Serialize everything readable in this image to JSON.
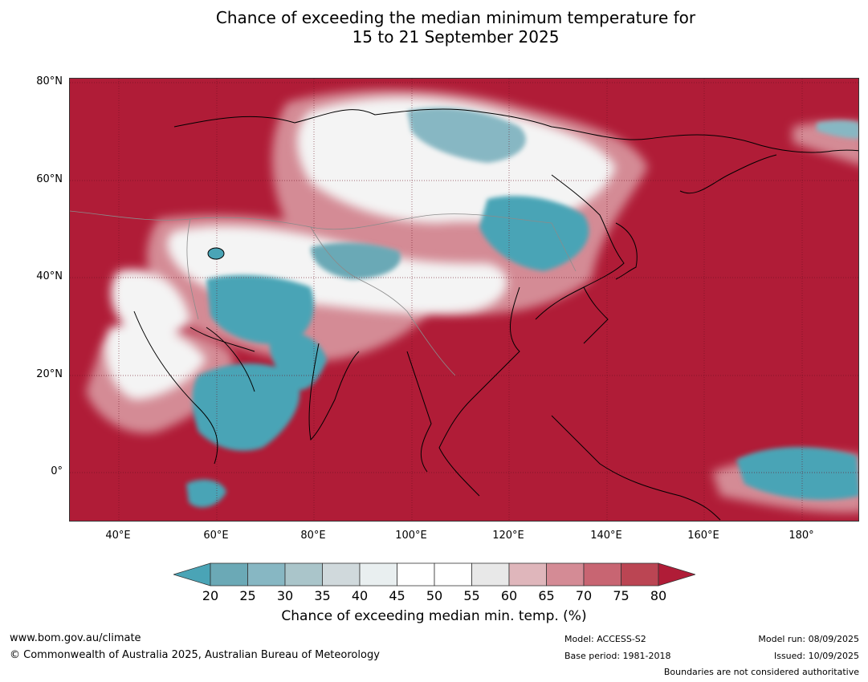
{
  "title_line1": "Chance of exceeding the median minimum temperature for",
  "title_line2": "15 to 21 September 2025",
  "lat_labels": [
    "80°N",
    "60°N",
    "40°N",
    "20°N",
    "0°"
  ],
  "lon_labels": [
    "40°E",
    "60°E",
    "80°E",
    "100°E",
    "120°E",
    "140°E",
    "160°E",
    "180°"
  ],
  "colorbar": {
    "ticks": [
      "20",
      "25",
      "30",
      "35",
      "40",
      "45",
      "50",
      "55",
      "60",
      "65",
      "70",
      "75",
      "80"
    ],
    "colors": [
      "#6ba9b6",
      "#87b7c3",
      "#aac5ca",
      "#d0d9dc",
      "#e9eff0",
      "#ffffff",
      "#ffffff",
      "#e8e8e8",
      "#dfb6bb",
      "#d48b95",
      "#c86572",
      "#bb4553"
    ],
    "low_extend_color": "#4aa4b6",
    "high_extend_color": "#b01c37",
    "label": "Chance of exceeding median min. temp. (%)"
  },
  "footer": {
    "website": "www.bom.gov.au/climate",
    "copyright": "© Commonwealth of Australia 2025, Australian Bureau of Meteorology",
    "model": "Model: ACCESS-S2",
    "base_period": "Base period: 1981-2018",
    "model_run": "Model run: 08/09/2025",
    "issued": "Issued: 10/09/2025",
    "disclaimer": "Boundaries are not considered authoritative"
  },
  "colors": {
    "high": "#b01c37",
    "low": "#4aa4b6",
    "neutral": "#ffffff"
  }
}
